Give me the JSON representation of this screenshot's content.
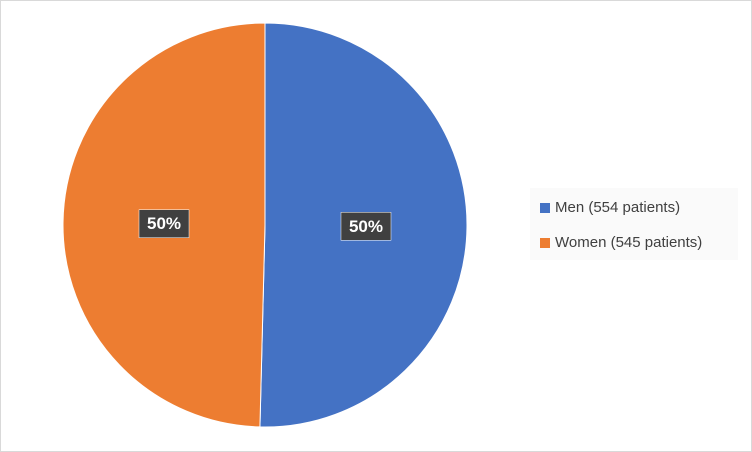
{
  "chart_data": {
    "type": "pie",
    "categories": [
      "Men (554 patients)",
      "Women (545 patients)"
    ],
    "values": [
      50.4,
      49.6
    ],
    "value_labels": [
      "50%",
      "50%"
    ],
    "colors": [
      "#4472c4",
      "#ed7d31"
    ],
    "legend": "right"
  }
}
